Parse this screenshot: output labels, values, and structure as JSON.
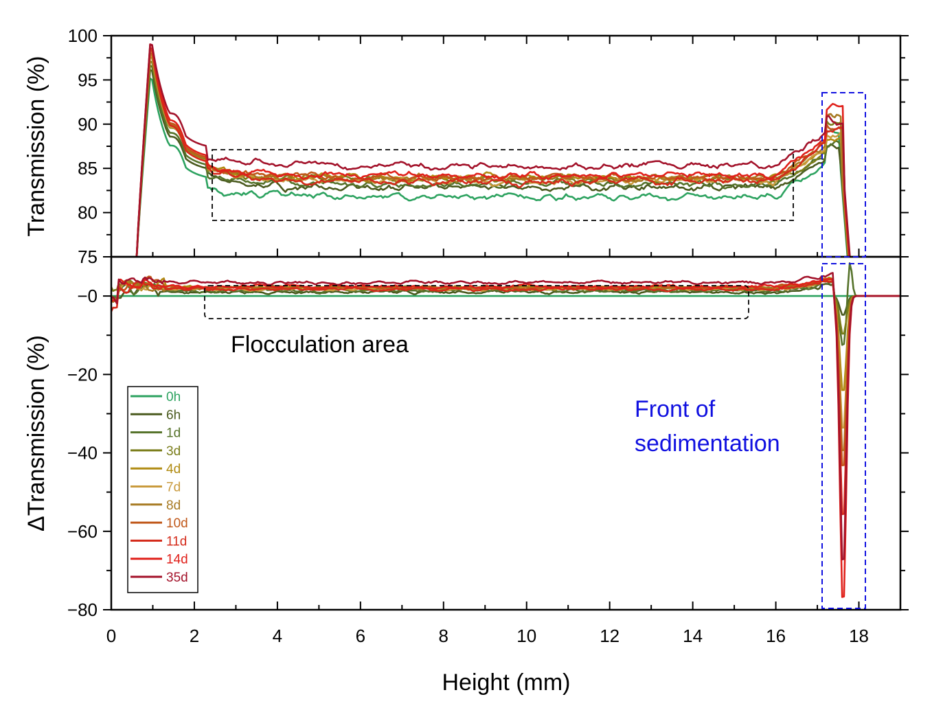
{
  "chart_data": [
    {
      "type": "line",
      "panel": "top",
      "ylabel": "Transmission (%)",
      "xlim": [
        0,
        19
      ],
      "ylim": [
        75,
        100
      ],
      "yticks": [
        "75",
        "80",
        "85",
        "90",
        "95",
        "100"
      ],
      "series": [
        {
          "name": "0h",
          "color": "#2ca25f",
          "peak": 96,
          "plateau": 81.8,
          "edge": 85.5
        },
        {
          "name": "6h",
          "color": "#4a5a1e",
          "peak": 97,
          "plateau": 82.8,
          "edge": 86.0
        },
        {
          "name": "1d",
          "color": "#55722a",
          "peak": 97.5,
          "plateau": 83.2,
          "edge": 86.3
        },
        {
          "name": "3d",
          "color": "#7a7d1a",
          "peak": 98,
          "plateau": 83.8,
          "edge": 86.6
        },
        {
          "name": "4d",
          "color": "#b08b12",
          "peak": 98.5,
          "plateau": 84.0,
          "edge": 87.0
        },
        {
          "name": "7d",
          "color": "#c99a3d",
          "peak": 98.8,
          "plateau": 83.6,
          "edge": 87.2
        },
        {
          "name": "8d",
          "color": "#a77a22",
          "peak": 99,
          "plateau": 83.9,
          "edge": 87.5
        },
        {
          "name": "10d",
          "color": "#c0581a",
          "peak": 99.3,
          "plateau": 84.0,
          "edge": 87.8
        },
        {
          "name": "11d",
          "color": "#d42a1a",
          "peak": 99.6,
          "plateau": 83.5,
          "edge": 88.0
        },
        {
          "name": "14d",
          "color": "#e0201a",
          "peak": 100,
          "plateau": 84.2,
          "edge": 88.5
        },
        {
          "name": "35d",
          "color": "#a3122a",
          "peak": 100,
          "plateau": 85.3,
          "edge": 89.0
        }
      ]
    },
    {
      "type": "line",
      "panel": "bottom",
      "ylabel": "ΔTransmission (%)",
      "xlabel": "Height (mm)",
      "xlim": [
        0,
        19
      ],
      "ylim": [
        -80,
        10
      ],
      "xticks": [
        "0",
        "2",
        "4",
        "6",
        "8",
        "10",
        "12",
        "14",
        "16",
        "18"
      ],
      "yticks": [
        "−80",
        "−60",
        "−40",
        "−20",
        "−0"
      ],
      "series": [
        {
          "name": "0h",
          "offset": 0.0,
          "dip": 0
        },
        {
          "name": "6h",
          "offset": 1.0,
          "dip": -5
        },
        {
          "name": "1d",
          "offset": 1.4,
          "dip": -13
        },
        {
          "name": "3d",
          "offset": 2.0,
          "dip": -10
        },
        {
          "name": "4d",
          "offset": 2.2,
          "dip": -25
        },
        {
          "name": "7d",
          "offset": 1.8,
          "dip": -35
        },
        {
          "name": "8d",
          "offset": 2.1,
          "dip": -41
        },
        {
          "name": "10d",
          "offset": 2.2,
          "dip": -45
        },
        {
          "name": "11d",
          "offset": 1.7,
          "dip": -58
        },
        {
          "name": "14d",
          "offset": 2.4,
          "dip": -80
        },
        {
          "name": "35d",
          "offset": 3.5,
          "dip": -70
        }
      ]
    }
  ],
  "annotations": {
    "flocculation": "Flocculation area",
    "front_line1": "Front of",
    "front_line2": "sedimentation"
  }
}
